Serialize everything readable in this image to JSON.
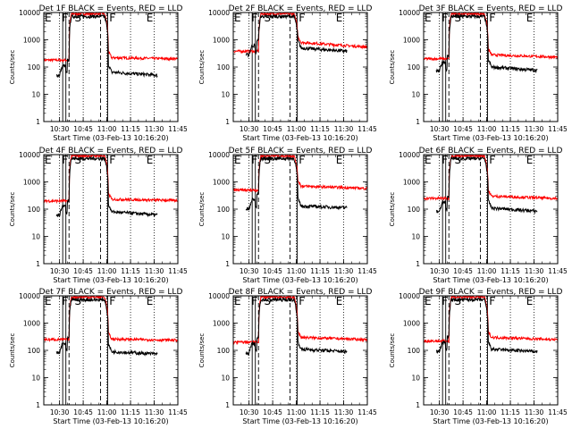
{
  "chart_data": {
    "type": "line",
    "yscale": "log",
    "ylim": [
      1,
      10000
    ],
    "ytick_labels": [
      "1",
      "10",
      "100",
      "1000",
      "10000"
    ],
    "x_range_minutes": [
      620,
      705
    ],
    "xtick_labels": [
      "10:30",
      "10:45",
      "11:00",
      "11:15",
      "11:30",
      "11:45"
    ],
    "xtick_minutes": [
      630,
      645,
      660,
      675,
      690,
      705
    ],
    "dotted_time_lines_minutes": [
      630,
      645,
      660,
      675,
      690,
      705
    ],
    "xlabel": "Start Time (03-Feb-13 10:16:20)",
    "ylabel": "Counts/sec",
    "colors": {
      "events": "#000000",
      "lld": "#ff0000"
    },
    "marker_letters": {
      "E": "E",
      "F": "F",
      "S": "S"
    },
    "panels": [
      {
        "title": "Det 1F BLACK = Events, RED = LLD",
        "pre_lld": 180,
        "pre_ev": 50,
        "peak_lld": 9000,
        "post_lld": 220,
        "post_ev": 65,
        "slope_lld": -0.001,
        "slope_ev": -0.004,
        "end_lld": 200,
        "end_ev": 45
      },
      {
        "title": "Det 2F BLACK = Events, RED = LLD",
        "pre_lld": 380,
        "pre_ev": 280,
        "peak_lld": 9000,
        "post_lld": 800,
        "post_ev": 500,
        "slope_lld": -0.004,
        "slope_ev": -0.004,
        "end_lld": 320,
        "end_ev": 330
      },
      {
        "title": "Det 3F BLACK = Events, RED = LLD",
        "pre_lld": 200,
        "pre_ev": 70,
        "peak_lld": 9000,
        "post_lld": 280,
        "post_ev": 100,
        "slope_lld": -0.002,
        "slope_ev": -0.004,
        "end_lld": 200,
        "end_ev": 60
      },
      {
        "title": "Det 4F BLACK = Events, RED = LLD",
        "pre_lld": 200,
        "pre_ev": 60,
        "peak_lld": 9000,
        "post_lld": 230,
        "post_ev": 80,
        "slope_lld": -0.001,
        "slope_ev": -0.004,
        "end_lld": 170,
        "end_ev": 50
      },
      {
        "title": "Det 5F BLACK = Events, RED = LLD",
        "pre_lld": 500,
        "pre_ev": 100,
        "peak_lld": 9000,
        "post_lld": 700,
        "post_ev": 130,
        "slope_lld": -0.002,
        "slope_ev": -0.002,
        "end_lld": 430,
        "end_ev": 90
      },
      {
        "title": "Det 6F BLACK = Events, RED = LLD",
        "pre_lld": 250,
        "pre_ev": 80,
        "peak_lld": 9000,
        "post_lld": 300,
        "post_ev": 110,
        "slope_lld": -0.002,
        "slope_ev": -0.004,
        "end_lld": 180,
        "end_ev": 60
      },
      {
        "title": "Det 7F BLACK = Events, RED = LLD",
        "pre_lld": 250,
        "pre_ev": 80,
        "peak_lld": 9000,
        "post_lld": 260,
        "post_ev": 90,
        "slope_lld": -0.001,
        "slope_ev": -0.003,
        "end_lld": 240,
        "end_ev": 40
      },
      {
        "title": "Det 8F BLACK = Events, RED = LLD",
        "pre_lld": 200,
        "pre_ev": 80,
        "peak_lld": 9000,
        "post_lld": 300,
        "post_ev": 110,
        "slope_lld": -0.002,
        "slope_ev": -0.003,
        "end_lld": 200,
        "end_ev": 60
      },
      {
        "title": "Det 9F BLACK = Events, RED = LLD",
        "pre_lld": 220,
        "pre_ev": 90,
        "peak_lld": 9000,
        "post_lld": 300,
        "post_ev": 110,
        "slope_lld": -0.002,
        "slope_ev": -0.003,
        "end_lld": 190,
        "end_ev": 50
      }
    ]
  }
}
